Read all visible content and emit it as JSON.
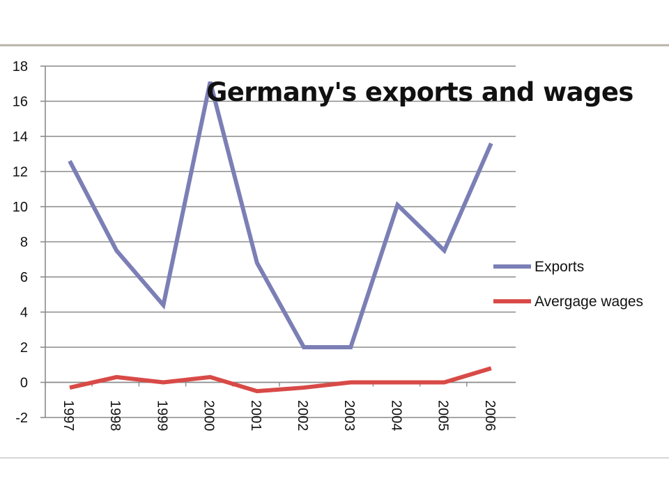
{
  "chart_data": {
    "type": "line",
    "title": "Germany's exports and wages",
    "xlabel": "",
    "ylabel": "",
    "categories": [
      "1997",
      "1998",
      "1999",
      "2000",
      "2001",
      "2002",
      "2003",
      "2004",
      "2005",
      "2006"
    ],
    "series": [
      {
        "name": "Exports",
        "color": "#7b7fb5",
        "values": [
          12.6,
          7.5,
          4.4,
          17.1,
          6.8,
          2.0,
          2.0,
          10.1,
          7.5,
          13.6
        ]
      },
      {
        "name": "Avergage wages",
        "color": "#d84a47",
        "values": [
          -0.3,
          0.3,
          0.0,
          0.3,
          -0.5,
          -0.3,
          0.0,
          0.0,
          0.0,
          0.8
        ]
      }
    ],
    "ylim": [
      -2,
      18
    ],
    "yticks": [
      "18",
      "16",
      "14",
      "12",
      "10",
      "8",
      "6",
      "4",
      "2",
      "0",
      "-2"
    ],
    "grid": true,
    "legend_position": "right"
  }
}
